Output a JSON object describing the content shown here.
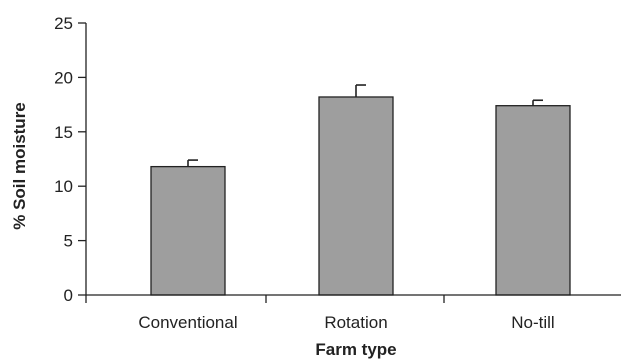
{
  "chart_data": {
    "type": "bar",
    "title": "",
    "xlabel": "Farm type",
    "ylabel": "% Soil moisture",
    "categories": [
      "Conventional",
      "Rotation",
      "No-till"
    ],
    "values": [
      11.8,
      18.2,
      17.4
    ],
    "errors": [
      0.6,
      1.1,
      0.5
    ],
    "ylim": [
      0,
      25
    ],
    "yticks": [
      0,
      5,
      10,
      15,
      20,
      25
    ],
    "grid": false,
    "legend": "none",
    "colors": {
      "bar_fill": "#9e9e9e",
      "bar_stroke": "#222222"
    }
  }
}
